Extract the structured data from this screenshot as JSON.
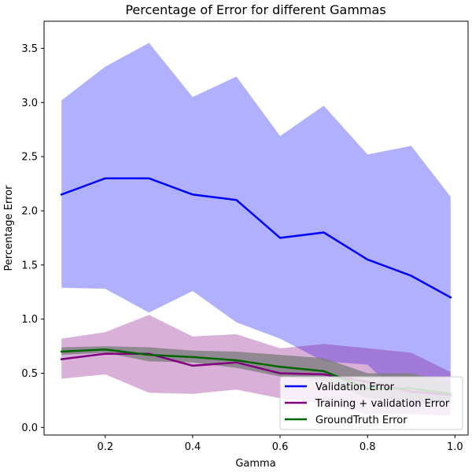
{
  "chart_data": {
    "type": "line",
    "title": "Percentage of Error for different Gammas",
    "xlabel": "Gamma",
    "ylabel": "Percentage Error",
    "xlim": [
      0.06,
      1.03
    ],
    "ylim": [
      -0.07,
      3.75
    ],
    "x_ticks": [
      0.2,
      0.4,
      0.6,
      0.8,
      1.0
    ],
    "x_tick_labels": [
      "0.2",
      "0.4",
      "0.6",
      "0.8",
      "1.0"
    ],
    "y_ticks": [
      0.0,
      0.5,
      1.0,
      1.5,
      2.0,
      2.5,
      3.0,
      3.5
    ],
    "y_tick_labels": [
      "0.0",
      "0.5",
      "1.0",
      "1.5",
      "2.0",
      "2.5",
      "3.0",
      "3.5"
    ],
    "grid": false,
    "legend_position": "bottom-right",
    "x": [
      0.1,
      0.2,
      0.3,
      0.4,
      0.5,
      0.6,
      0.7,
      0.8,
      0.9,
      0.99
    ],
    "series": [
      {
        "name": "Validation Error",
        "color": "#0000ff",
        "band_color": "#0000ff",
        "band_opacity": 0.31,
        "values": [
          2.15,
          2.3,
          2.3,
          2.15,
          2.1,
          1.75,
          1.8,
          1.55,
          1.4,
          1.2
        ],
        "upper": [
          3.02,
          3.33,
          3.55,
          3.05,
          3.24,
          2.69,
          2.97,
          2.52,
          2.6,
          2.13
        ],
        "lower": [
          1.29,
          1.28,
          1.06,
          1.26,
          0.97,
          0.82,
          0.61,
          0.58,
          0.2,
          0.26
        ]
      },
      {
        "name": "Training + validation Error",
        "color": "#800080",
        "band_color": "#800080",
        "band_opacity": 0.31,
        "values": [
          0.63,
          0.68,
          0.68,
          0.57,
          0.6,
          0.5,
          0.49,
          0.42,
          0.33,
          0.3
        ],
        "upper": [
          0.82,
          0.88,
          1.04,
          0.84,
          0.86,
          0.73,
          0.77,
          0.73,
          0.69,
          0.51
        ],
        "lower": [
          0.45,
          0.49,
          0.32,
          0.31,
          0.35,
          0.27,
          0.22,
          0.12,
          0.12,
          0.11
        ]
      },
      {
        "name": "GroundTruth Error",
        "color": "#006400",
        "band_color": "#808080",
        "band_opacity": 0.8,
        "values": [
          0.7,
          0.72,
          0.67,
          0.65,
          0.62,
          0.56,
          0.52,
          0.36,
          0.36,
          0.31
        ],
        "upper": [
          0.74,
          0.75,
          0.74,
          0.71,
          0.7,
          0.67,
          0.64,
          0.5,
          0.5,
          0.42
        ],
        "lower": [
          0.67,
          0.69,
          0.61,
          0.6,
          0.55,
          0.47,
          0.43,
          0.27,
          0.25,
          0.22
        ]
      }
    ]
  }
}
